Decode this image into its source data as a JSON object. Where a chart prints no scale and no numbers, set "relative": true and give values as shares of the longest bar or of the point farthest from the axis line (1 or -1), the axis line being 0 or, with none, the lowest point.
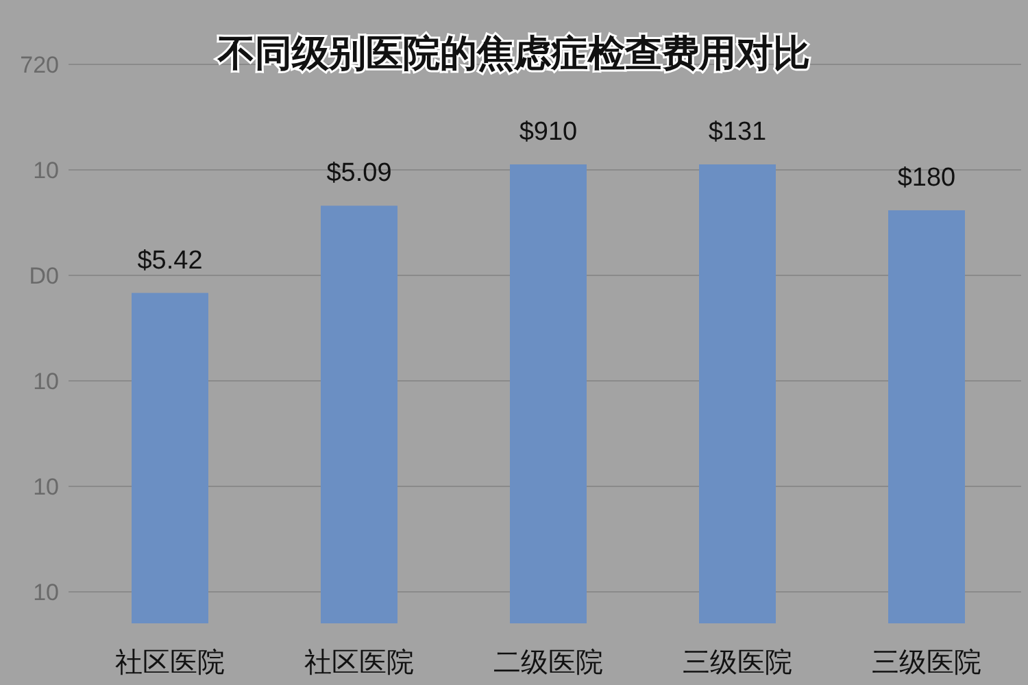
{
  "chart_data": {
    "type": "bar",
    "title": "不同级别医院的焦虑症检查费用对比",
    "categories": [
      "社区医院",
      "社区医院",
      "二级医院",
      "三级医院",
      "三级医院"
    ],
    "values": [
      0.72,
      0.91,
      1,
      1,
      0.9
    ],
    "relative": true,
    "color": "#6b8fc3",
    "annotations": [
      "$5.42",
      "$5.09",
      "$910",
      "$131",
      "$180",
      "720",
      "10",
      "D0",
      "10",
      "10",
      "10"
    ],
    "grid": "y"
  }
}
